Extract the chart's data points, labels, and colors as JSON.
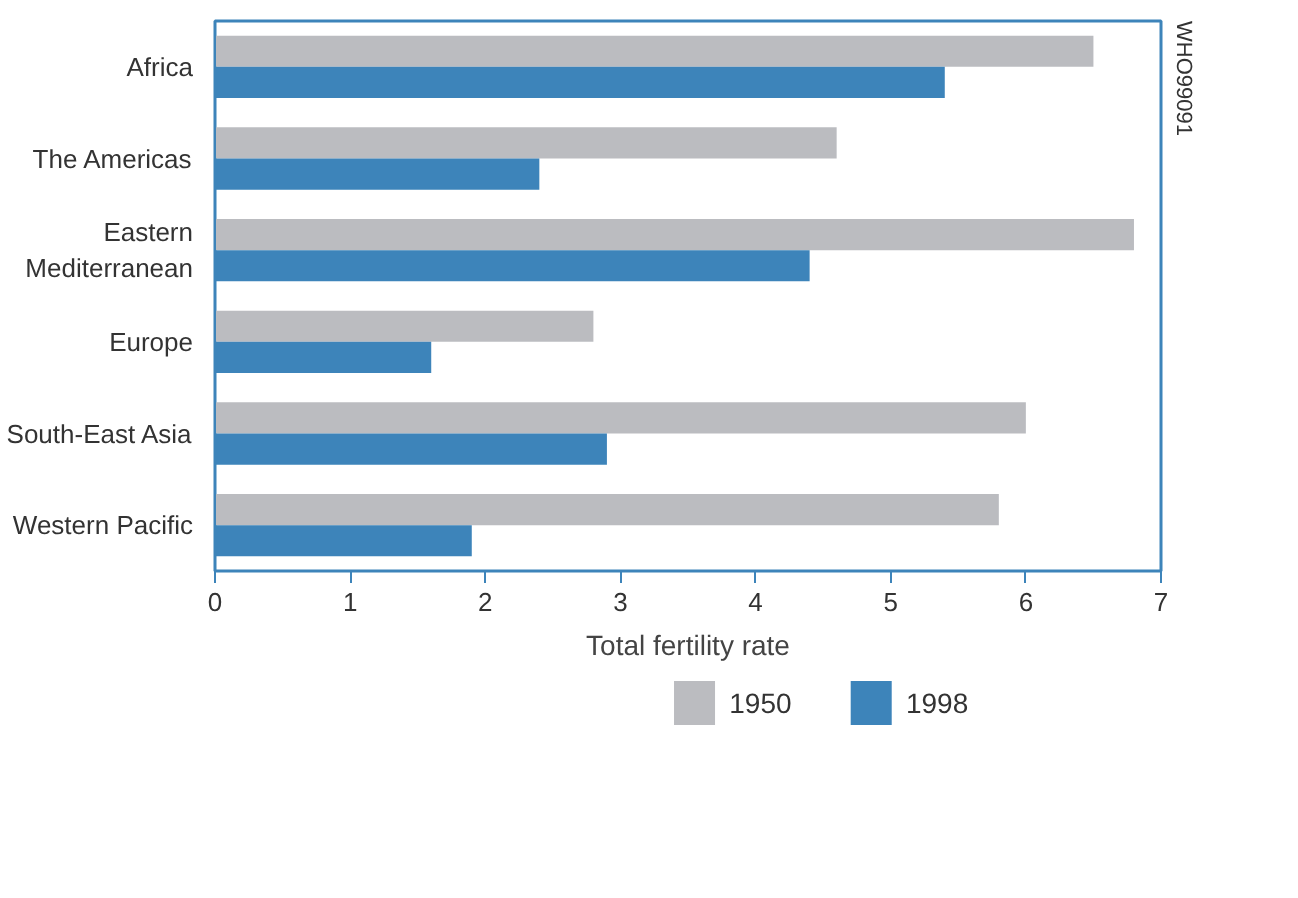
{
  "chart_data": {
    "type": "bar",
    "orientation": "horizontal",
    "xlabel": "Total fertility rate",
    "categories": [
      "Africa",
      "The Americas",
      "Eastern Mediterranean",
      "Europe",
      "South-East Asia",
      "Western Pacific"
    ],
    "series": [
      {
        "name": "1950",
        "color": "#bbbcc0",
        "values": [
          6.5,
          4.6,
          6.8,
          2.8,
          6.0,
          5.8
        ]
      },
      {
        "name": "1998",
        "color": "#3d84ba",
        "values": [
          5.4,
          2.4,
          4.4,
          1.6,
          2.9,
          1.9
        ]
      }
    ],
    "xlim": [
      0,
      7
    ],
    "xticks": [
      0,
      1,
      2,
      3,
      4,
      5,
      6,
      7
    ],
    "grid": false,
    "legend": "bottom",
    "annotations": [
      "WHO99091"
    ]
  }
}
